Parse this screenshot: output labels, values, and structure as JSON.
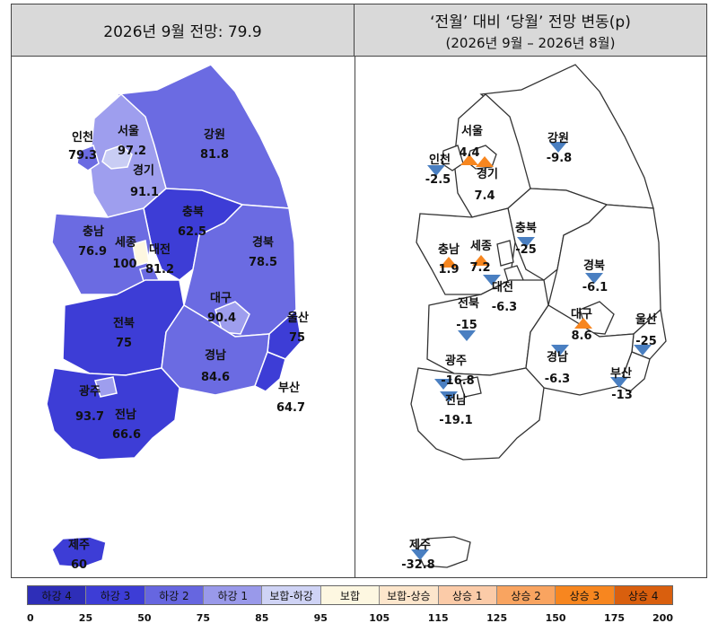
{
  "left_title": "2026년 9월 전망: 79.9",
  "right_title_line1": "‘전월’ 대비 ‘당월’ 전망 변동(p)",
  "right_title_line2": "(2026년 9월 – 2026년 8월)",
  "left_map": {
    "regions": [
      {
        "name": "인천",
        "value": "79.3"
      },
      {
        "name": "서울",
        "value": "97.2"
      },
      {
        "name": "경기",
        "value": "91.1"
      },
      {
        "name": "강원",
        "value": "81.8"
      },
      {
        "name": "충북",
        "value": "62.5"
      },
      {
        "name": "충남",
        "value": "76.9"
      },
      {
        "name": "세종",
        "value": "100"
      },
      {
        "name": "대전",
        "value": "81.2"
      },
      {
        "name": "경북",
        "value": "78.5"
      },
      {
        "name": "대구",
        "value": "90.4"
      },
      {
        "name": "울산",
        "value": "75"
      },
      {
        "name": "전북",
        "value": "75"
      },
      {
        "name": "경남",
        "value": "84.6"
      },
      {
        "name": "부산",
        "value": "64.7"
      },
      {
        "name": "광주",
        "value": "93.7"
      },
      {
        "name": "전남",
        "value": "66.6"
      },
      {
        "name": "제주",
        "value": "60"
      }
    ]
  },
  "right_map": {
    "regions": [
      {
        "name": "서울",
        "value": "4.4",
        "direction": "up"
      },
      {
        "name": "인천",
        "value": "-2.5",
        "direction": "down"
      },
      {
        "name": "경기",
        "value": "7.4",
        "direction": "up"
      },
      {
        "name": "강원",
        "value": "-9.8",
        "direction": "down"
      },
      {
        "name": "충북",
        "value": "-25",
        "direction": "down"
      },
      {
        "name": "충남",
        "value": "1.9",
        "direction": "up"
      },
      {
        "name": "세종",
        "value": "7.2",
        "direction": "up"
      },
      {
        "name": "대전",
        "value": "-6.3",
        "direction": "down"
      },
      {
        "name": "경북",
        "value": "-6.1",
        "direction": "down"
      },
      {
        "name": "전북",
        "value": "-15",
        "direction": "down"
      },
      {
        "name": "대구",
        "value": "8.6",
        "direction": "up"
      },
      {
        "name": "울산",
        "value": "-25",
        "direction": "down"
      },
      {
        "name": "광주",
        "value": "-16.8",
        "direction": "down"
      },
      {
        "name": "경남",
        "value": "-6.3",
        "direction": "down"
      },
      {
        "name": "부산",
        "value": "-13",
        "direction": "down"
      },
      {
        "name": "전남",
        "value": "-19.1",
        "direction": "down"
      },
      {
        "name": "제주",
        "value": "-32.8",
        "direction": "down"
      }
    ]
  },
  "legend": {
    "segments": [
      {
        "label": "하강 4",
        "color": "#2e2eb8"
      },
      {
        "label": "하강 3",
        "color": "#3d3dd6"
      },
      {
        "label": "하강 2",
        "color": "#6666e0"
      },
      {
        "label": "하강 1",
        "color": "#9999ea"
      },
      {
        "label": "보합-하강",
        "color": "#cfd3f5"
      },
      {
        "label": "보합",
        "color": "#fdf7e1"
      },
      {
        "label": "보합-상승",
        "color": "#fde6cc"
      },
      {
        "label": "상승 1",
        "color": "#fbcba8"
      },
      {
        "label": "상승 2",
        "color": "#f9a460"
      },
      {
        "label": "상승 3",
        "color": "#f7861f"
      },
      {
        "label": "상승 4",
        "color": "#d95f0e"
      }
    ],
    "ticks": [
      "0",
      "25",
      "50",
      "75",
      "85",
      "95",
      "105",
      "115",
      "125",
      "150",
      "175",
      "200"
    ]
  },
  "colors": {
    "up_marker": "#f7861f",
    "down_marker": "#4a7fc1"
  }
}
